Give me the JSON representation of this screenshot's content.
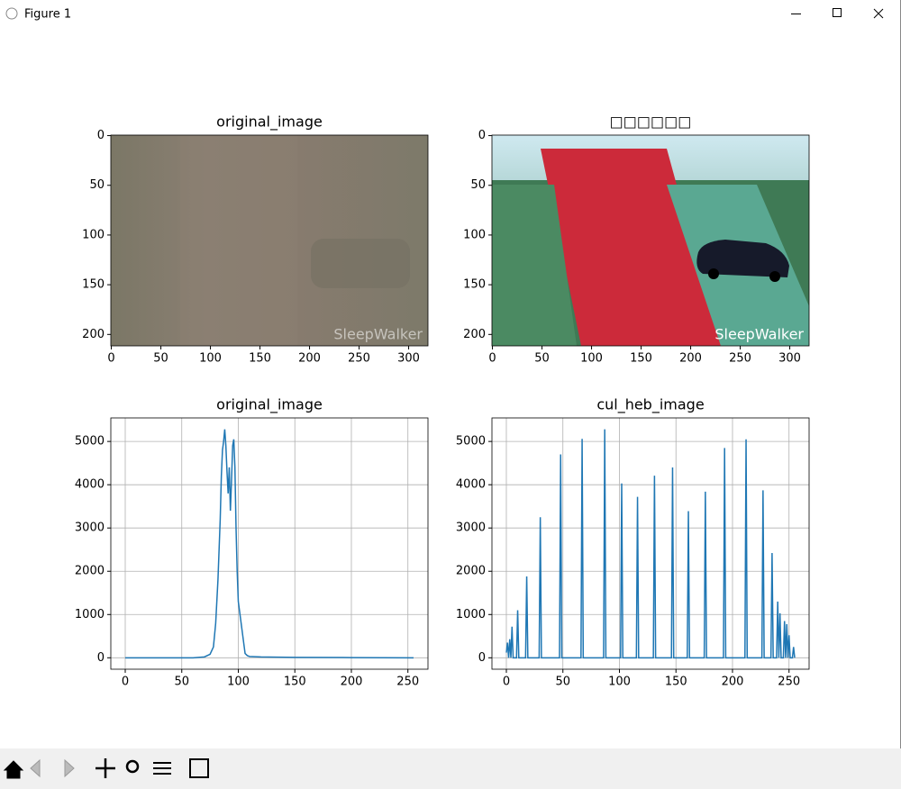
{
  "window": {
    "title": "Figure 1"
  },
  "chart_data": [
    {
      "type": "image",
      "title": "original_image",
      "watermark": "SleepWalker",
      "xlim": [
        -0.5,
        319.5
      ],
      "ylim": [
        211.5,
        -0.5
      ],
      "xticks": [
        0,
        50,
        100,
        150,
        200,
        250,
        300
      ],
      "yticks": [
        0,
        50,
        100,
        150,
        200
      ]
    },
    {
      "type": "image",
      "title": "□□□□□□",
      "watermark": "SleepWalker",
      "xlim": [
        -0.5,
        319.5
      ],
      "ylim": [
        211.5,
        -0.5
      ],
      "xticks": [
        0,
        50,
        100,
        150,
        200,
        250,
        300
      ],
      "yticks": [
        0,
        50,
        100,
        150,
        200
      ]
    },
    {
      "type": "line",
      "title": "original_image",
      "color": "#1f77b4",
      "grid": true,
      "xlim": [
        -12.75,
        267.75
      ],
      "ylim": [
        -264,
        5544
      ],
      "xticks": [
        0,
        50,
        100,
        150,
        200,
        250
      ],
      "yticks": [
        0,
        1000,
        2000,
        3000,
        4000,
        5000
      ],
      "x": [
        0,
        60,
        70,
        75,
        78,
        80,
        82,
        84,
        85,
        86,
        87,
        88,
        89,
        90,
        91,
        92,
        93,
        94,
        95,
        96,
        97,
        98,
        99,
        100,
        101,
        102,
        104,
        106,
        108,
        110,
        120,
        150,
        200,
        255
      ],
      "values": [
        0,
        0,
        20,
        80,
        250,
        800,
        1800,
        3200,
        4200,
        4800,
        5000,
        5280,
        4900,
        4300,
        3800,
        4400,
        3400,
        4100,
        4900,
        5050,
        4400,
        3000,
        2000,
        1300,
        1100,
        900,
        500,
        100,
        50,
        30,
        20,
        10,
        5,
        0
      ]
    },
    {
      "type": "line",
      "title": "cul_heb_image",
      "color": "#1f77b4",
      "grid": true,
      "xlim": [
        -12.75,
        267.75
      ],
      "ylim": [
        -264,
        5544
      ],
      "xticks": [
        0,
        50,
        100,
        150,
        200,
        250
      ],
      "yticks": [
        0,
        1000,
        2000,
        3000,
        4000,
        5000
      ],
      "x": [
        0,
        1,
        2,
        3,
        4,
        5,
        6,
        9,
        10,
        11,
        17,
        18,
        19,
        29,
        30,
        31,
        47,
        48,
        49,
        66,
        67,
        68,
        86,
        87,
        88,
        101,
        102,
        103,
        115,
        116,
        117,
        130,
        131,
        132,
        146,
        147,
        148,
        160,
        161,
        162,
        175,
        176,
        177,
        192,
        193,
        194,
        211,
        212,
        213,
        226,
        227,
        228,
        234,
        235,
        236,
        239,
        240,
        241,
        242,
        243,
        245,
        246,
        247,
        248,
        249,
        250,
        251,
        253,
        254,
        255
      ],
      "values": [
        120,
        350,
        0,
        430,
        0,
        720,
        0,
        0,
        1100,
        0,
        0,
        1880,
        0,
        0,
        3250,
        0,
        0,
        4700,
        0,
        0,
        5060,
        0,
        0,
        5280,
        0,
        0,
        4030,
        0,
        0,
        3720,
        0,
        0,
        4210,
        0,
        0,
        4400,
        0,
        0,
        3390,
        0,
        0,
        3840,
        0,
        0,
        4850,
        0,
        0,
        5050,
        0,
        0,
        3870,
        0,
        0,
        2420,
        0,
        0,
        1300,
        0,
        1030,
        0,
        0,
        850,
        0,
        780,
        0,
        520,
        0,
        0,
        250,
        0
      ]
    }
  ]
}
